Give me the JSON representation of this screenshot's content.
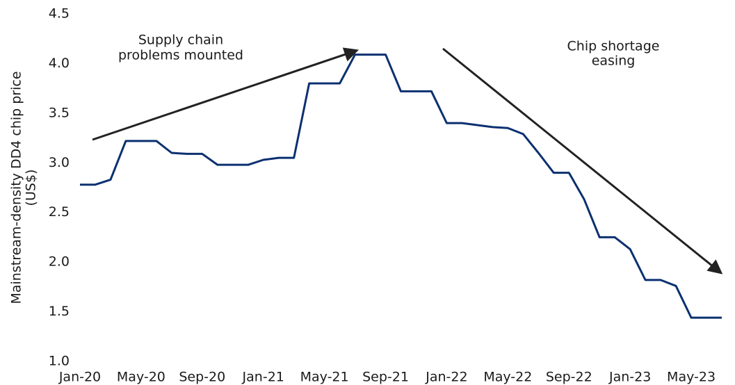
{
  "chart_data": {
    "type": "line",
    "ylabel": [
      "Mainstream-density DD4 chip price",
      "(US$)"
    ],
    "categories": [
      "Jan-20",
      null,
      null,
      null,
      "May-20",
      null,
      null,
      null,
      "Sep-20",
      null,
      null,
      null,
      "Jan-21",
      null,
      null,
      null,
      "May-21",
      null,
      null,
      null,
      "Sep-21",
      null,
      null,
      null,
      "Jan-22",
      null,
      null,
      null,
      "May-22",
      null,
      null,
      null,
      "Sep-22",
      null,
      null,
      null,
      "Jan-23",
      null,
      null,
      null,
      "May-23",
      null,
      null
    ],
    "series": [
      {
        "name": "DD4 chip price",
        "color": "#0b3070",
        "values": [
          2.78,
          2.78,
          2.83,
          3.22,
          3.22,
          3.22,
          3.1,
          3.09,
          3.09,
          2.98,
          2.98,
          2.98,
          3.03,
          3.05,
          3.05,
          3.8,
          3.8,
          3.8,
          4.09,
          4.09,
          4.09,
          3.72,
          3.72,
          3.72,
          3.4,
          3.4,
          3.38,
          3.36,
          3.35,
          3.29,
          3.1,
          2.9,
          2.9,
          2.63,
          2.25,
          2.25,
          2.13,
          1.82,
          1.82,
          1.76,
          1.44,
          1.44,
          1.44
        ]
      }
    ],
    "ylim": [
      1.0,
      4.5
    ],
    "yticks": [
      {
        "value": 1.0,
        "label": "1.0"
      },
      1.5,
      {
        "value": 2.0,
        "label": "2.0"
      },
      2.5,
      {
        "value": 3.0,
        "label": "3.0"
      },
      3.5,
      {
        "value": 4.0,
        "label": "4.0"
      },
      4.5
    ],
    "annotations": [
      {
        "lines": [
          "Supply chain",
          "problems mounted"
        ]
      },
      {
        "lines": [
          "Chip shortage",
          "easing"
        ]
      }
    ],
    "grid": false
  }
}
